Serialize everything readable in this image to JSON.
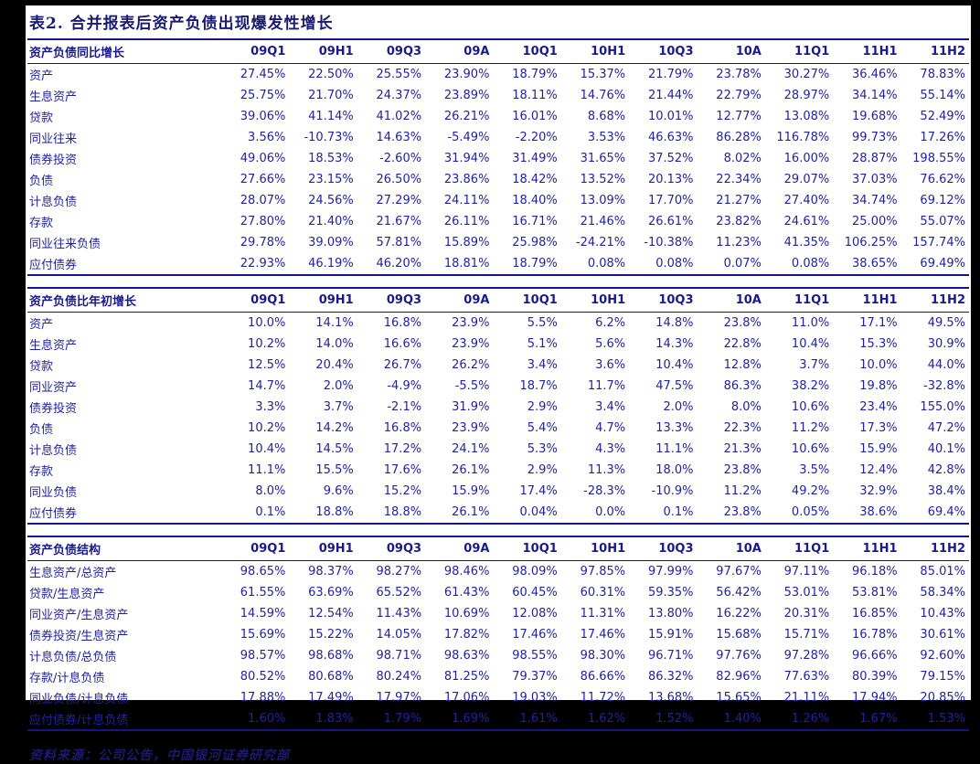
{
  "page": {
    "title": "表2. 合并报表后资产负债出现爆发性增长",
    "source_note": "资料来源：公司公告，中国银河证券研究部",
    "colors": {
      "text_navy": "#2222a2",
      "heading_navy": "#1a1a70",
      "border_navy": "#14148c",
      "paper": "#ffffff",
      "page_margin": "#000000"
    }
  },
  "columns": [
    "09Q1",
    "09H1",
    "09Q3",
    "09A",
    "10Q1",
    "10H1",
    "10Q3",
    "10A",
    "11Q1",
    "11H1",
    "11H2"
  ],
  "tables": [
    {
      "title": "资产负债同比增长",
      "rows": [
        {
          "label": "资产",
          "values": [
            "27.45%",
            "22.50%",
            "25.55%",
            "23.90%",
            "18.79%",
            "15.37%",
            "21.79%",
            "23.78%",
            "30.27%",
            "36.46%",
            "78.83%"
          ]
        },
        {
          "label": "生息资产",
          "values": [
            "25.75%",
            "21.70%",
            "24.37%",
            "23.89%",
            "18.11%",
            "14.76%",
            "21.44%",
            "22.79%",
            "28.97%",
            "34.14%",
            "55.14%"
          ]
        },
        {
          "label": "贷款",
          "values": [
            "39.06%",
            "41.14%",
            "41.02%",
            "26.21%",
            "16.01%",
            "8.68%",
            "10.01%",
            "12.77%",
            "13.08%",
            "19.68%",
            "52.49%"
          ]
        },
        {
          "label": "同业往来",
          "values": [
            "3.56%",
            "-10.73%",
            "14.63%",
            "-5.49%",
            "-2.20%",
            "3.53%",
            "46.63%",
            "86.28%",
            "116.78%",
            "99.73%",
            "17.26%"
          ]
        },
        {
          "label": "债券投资",
          "values": [
            "49.06%",
            "18.53%",
            "-2.60%",
            "31.94%",
            "31.49%",
            "31.65%",
            "37.52%",
            "8.02%",
            "16.00%",
            "28.87%",
            "198.55%"
          ]
        },
        {
          "label": "负债",
          "values": [
            "27.66%",
            "23.15%",
            "26.50%",
            "23.86%",
            "18.42%",
            "13.52%",
            "20.13%",
            "22.34%",
            "29.07%",
            "37.03%",
            "76.62%"
          ]
        },
        {
          "label": "计息负债",
          "values": [
            "28.07%",
            "24.56%",
            "27.29%",
            "24.11%",
            "18.40%",
            "13.09%",
            "17.70%",
            "21.27%",
            "27.40%",
            "34.74%",
            "69.12%"
          ]
        },
        {
          "label": "存款",
          "values": [
            "27.80%",
            "21.40%",
            "21.67%",
            "26.11%",
            "16.71%",
            "21.46%",
            "26.61%",
            "23.82%",
            "24.61%",
            "25.00%",
            "55.07%"
          ]
        },
        {
          "label": "同业往来负债",
          "values": [
            "29.78%",
            "39.09%",
            "57.81%",
            "15.89%",
            "25.98%",
            "-24.21%",
            "-10.38%",
            "11.23%",
            "41.35%",
            "106.25%",
            "157.74%"
          ]
        },
        {
          "label": "应付债券",
          "values": [
            "22.93%",
            "46.19%",
            "46.20%",
            "18.81%",
            "18.79%",
            "0.08%",
            "0.08%",
            "0.07%",
            "0.08%",
            "38.65%",
            "69.49%"
          ]
        }
      ]
    },
    {
      "title": "资产负债比年初增长",
      "rows": [
        {
          "label": "资产",
          "values": [
            "10.0%",
            "14.1%",
            "16.8%",
            "23.9%",
            "5.5%",
            "6.2%",
            "14.8%",
            "23.8%",
            "11.0%",
            "17.1%",
            "49.5%"
          ]
        },
        {
          "label": "生息资产",
          "values": [
            "10.2%",
            "14.0%",
            "16.6%",
            "23.9%",
            "5.1%",
            "5.6%",
            "14.3%",
            "22.8%",
            "10.4%",
            "15.3%",
            "30.9%"
          ]
        },
        {
          "label": "贷款",
          "values": [
            "12.5%",
            "20.4%",
            "26.7%",
            "26.2%",
            "3.4%",
            "3.6%",
            "10.4%",
            "12.8%",
            "3.7%",
            "10.0%",
            "44.0%"
          ]
        },
        {
          "label": "同业资产",
          "values": [
            "14.7%",
            "2.0%",
            "-4.9%",
            "-5.5%",
            "18.7%",
            "11.7%",
            "47.5%",
            "86.3%",
            "38.2%",
            "19.8%",
            "-32.8%"
          ]
        },
        {
          "label": "债券投资",
          "values": [
            "3.3%",
            "3.7%",
            "-2.1%",
            "31.9%",
            "2.9%",
            "3.4%",
            "2.0%",
            "8.0%",
            "10.6%",
            "23.4%",
            "155.0%"
          ]
        },
        {
          "label": "负债",
          "values": [
            "10.2%",
            "14.2%",
            "16.8%",
            "23.9%",
            "5.4%",
            "4.7%",
            "13.3%",
            "22.3%",
            "11.2%",
            "17.3%",
            "47.2%"
          ]
        },
        {
          "label": "计息负债",
          "values": [
            "10.4%",
            "14.5%",
            "17.2%",
            "24.1%",
            "5.3%",
            "4.3%",
            "11.1%",
            "21.3%",
            "10.6%",
            "15.9%",
            "40.1%"
          ]
        },
        {
          "label": "存款",
          "values": [
            "11.1%",
            "15.5%",
            "17.6%",
            "26.1%",
            "2.9%",
            "11.3%",
            "18.0%",
            "23.8%",
            "3.5%",
            "12.4%",
            "42.8%"
          ]
        },
        {
          "label": "同业负债",
          "values": [
            "8.0%",
            "9.6%",
            "15.2%",
            "15.9%",
            "17.4%",
            "-28.3%",
            "-10.9%",
            "11.2%",
            "49.2%",
            "32.9%",
            "38.4%"
          ]
        },
        {
          "label": "应付债券",
          "values": [
            "0.1%",
            "18.8%",
            "18.8%",
            "26.1%",
            "0.04%",
            "0.0%",
            "0.1%",
            "23.8%",
            "0.05%",
            "38.6%",
            "69.4%"
          ]
        }
      ]
    },
    {
      "title": "资产负债结构",
      "rows": [
        {
          "label": "生息资产/总资产",
          "values": [
            "98.65%",
            "98.37%",
            "98.27%",
            "98.46%",
            "98.09%",
            "97.85%",
            "97.99%",
            "97.67%",
            "97.11%",
            "96.18%",
            "85.01%"
          ]
        },
        {
          "label": "贷款/生息资产",
          "values": [
            "61.55%",
            "63.69%",
            "65.52%",
            "61.43%",
            "60.45%",
            "60.31%",
            "59.35%",
            "56.42%",
            "53.01%",
            "53.81%",
            "58.34%"
          ]
        },
        {
          "label": "同业资产/生息资产",
          "values": [
            "14.59%",
            "12.54%",
            "11.43%",
            "10.69%",
            "12.08%",
            "11.31%",
            "13.80%",
            "16.22%",
            "20.31%",
            "16.85%",
            "10.43%"
          ]
        },
        {
          "label": "债券投资/生息资产",
          "values": [
            "15.69%",
            "15.22%",
            "14.05%",
            "17.82%",
            "17.46%",
            "17.46%",
            "15.91%",
            "15.68%",
            "15.71%",
            "16.78%",
            "30.61%"
          ]
        },
        {
          "label": "计息负债/总负债",
          "values": [
            "98.57%",
            "98.68%",
            "98.71%",
            "98.63%",
            "98.55%",
            "98.30%",
            "96.71%",
            "97.76%",
            "97.28%",
            "96.66%",
            "92.60%"
          ]
        },
        {
          "label": "存款/计息负债",
          "values": [
            "80.52%",
            "80.68%",
            "80.24%",
            "81.25%",
            "79.37%",
            "86.66%",
            "86.32%",
            "82.96%",
            "77.63%",
            "80.39%",
            "79.15%"
          ]
        },
        {
          "label": "同业负债/计息负债",
          "values": [
            "17.88%",
            "17.49%",
            "17.97%",
            "17.06%",
            "19.03%",
            "11.72%",
            "13.68%",
            "15.65%",
            "21.11%",
            "17.94%",
            "20.85%"
          ]
        },
        {
          "label": "应付债券/计息负债",
          "values": [
            "1.60%",
            "1.83%",
            "1.79%",
            "1.69%",
            "1.61%",
            "1.62%",
            "1.52%",
            "1.40%",
            "1.26%",
            "1.67%",
            "1.53%"
          ]
        }
      ]
    }
  ]
}
